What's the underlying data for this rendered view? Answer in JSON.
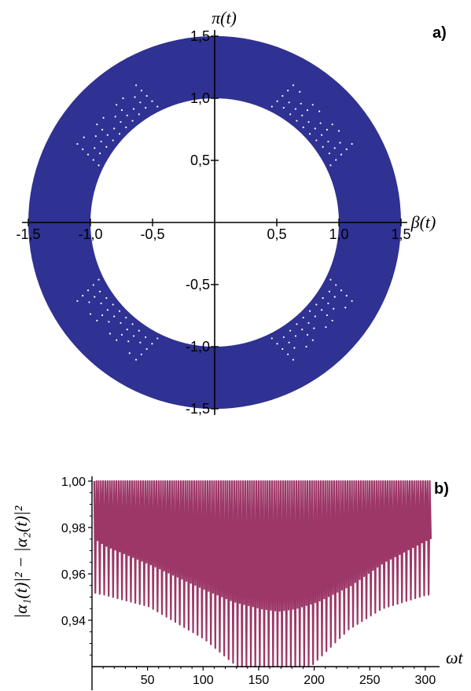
{
  "chart_data": [
    {
      "panel_label": "a)",
      "type": "scatter",
      "xlabel": "β(t)",
      "ylabel": "π(t)",
      "xlim": [
        -1.5,
        1.5
      ],
      "ylim": [
        -1.5,
        1.5
      ],
      "x_ticks": [
        -1.5,
        -1.0,
        -0.5,
        0.5,
        1.0,
        1.5
      ],
      "y_ticks": [
        -1.5,
        -1.0,
        -0.5,
        0.5,
        1.0,
        1.5
      ],
      "x_tick_labels": [
        "-1,5",
        "-1,0",
        "-0,5",
        "0,5",
        "1,0",
        "1,5"
      ],
      "y_tick_labels": [
        "-1,5",
        "-1,0",
        "-0,5",
        "0,5",
        "1,0",
        "1,5"
      ],
      "region": {
        "shape": "annulus",
        "inner_radius": 1.0,
        "outer_radius": 1.5,
        "fill": "#2f3193"
      },
      "gaps": {
        "description": "scattered white points",
        "centers": [
          [
            -0.92,
            0.92
          ],
          [
            0.92,
            0.92
          ],
          [
            -0.92,
            -0.92
          ],
          [
            0.92,
            -0.92
          ]
        ]
      }
    },
    {
      "panel_label": "b)",
      "type": "line",
      "xlabel": "ωt",
      "ylabel": "|α₁(t)|² − |α₂(t)|²",
      "xlim": [
        0,
        310
      ],
      "ylim": [
        0.92,
        1.0
      ],
      "x_ticks": [
        50,
        100,
        150,
        200,
        250,
        300
      ],
      "y_ticks": [
        0.94,
        0.96,
        0.98,
        1.0
      ],
      "y_tick_labels": [
        "0,94",
        "0,96",
        "0,98",
        "1,00"
      ],
      "series": [
        {
          "color": "#9c3767",
          "upper": 1.0,
          "envelope_x": [
            0,
            10,
            50,
            100,
            125,
            150,
            165,
            180,
            200,
            230,
            260,
            300
          ],
          "envelope_min": [
            0.952,
            0.951,
            0.946,
            0.932,
            0.922,
            0.912,
            0.91,
            0.912,
            0.922,
            0.936,
            0.945,
            0.951
          ],
          "envelope_inner": [
            0.975,
            0.972,
            0.964,
            0.953,
            0.948,
            0.945,
            0.944,
            0.945,
            0.948,
            0.955,
            0.965,
            0.975
          ],
          "period": 4.0
        }
      ]
    }
  ],
  "colors": {
    "annulus": "#2f3193",
    "line": "#9c3767",
    "axis": "#000000"
  }
}
